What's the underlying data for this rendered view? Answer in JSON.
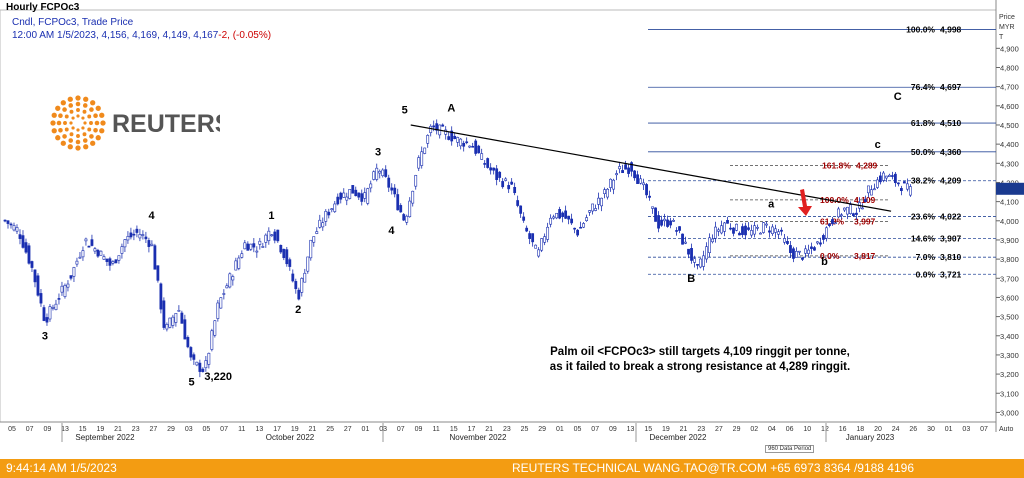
{
  "header": {
    "title": "Hourly FCPOc3",
    "legend_series": "Cndl, FCPOc3, Trade Price",
    "legend_ohlc": "12:00 AM 1/5/2023, 4,156, 4,169, 4,149, 4,167",
    "legend_change": "-2, (-0.05%)"
  },
  "logo": {
    "text": "REUTERS"
  },
  "price_axis": {
    "label_line1": "Price",
    "label_line2": "MYR",
    "label_line3": "T",
    "auto_label": "Auto"
  },
  "bottom_tag": "960 Data Period",
  "annotation": {
    "line1": "Palm oil <FCPOc3> still targets 4,109 ringgit per tonne,",
    "line2": "as it failed to break a strong resistance at 4,289 ringgit."
  },
  "footer": {
    "time": "9:44:14 AM 1/5/2023",
    "credit": "REUTERS TECHNICAL  WANG.TAO@TR.COM  +65 6973 8364 /9188 4196"
  },
  "chart_data": {
    "type": "candlestick",
    "title": "Hourly FCPOc3",
    "y_axis": {
      "unit": "MYR/T",
      "ylim": [
        2950,
        5100
      ],
      "ticks": [
        3000,
        3100,
        3200,
        3300,
        3400,
        3500,
        3600,
        3700,
        3800,
        3900,
        4000,
        4100,
        4200,
        4300,
        4400,
        4500,
        4600,
        4700,
        4800,
        4900
      ],
      "tick_labels": [
        "3,000",
        "3,100",
        "3,200",
        "3,300",
        "3,400",
        "3,500",
        "3,600",
        "3,700",
        "3,800",
        "3,900",
        "4,000",
        "4,100",
        "4,200",
        "4,300",
        "4,400",
        "4,500",
        "4,600",
        "4,700",
        "4,800",
        "4,900"
      ],
      "current_price": 4167
    },
    "x_axis": {
      "day_labels": [
        "05",
        "07",
        "09",
        "13",
        "15",
        "19",
        "21",
        "23",
        "27",
        "29",
        "03",
        "05",
        "07",
        "11",
        "13",
        "17",
        "19",
        "21",
        "25",
        "27",
        "01",
        "03",
        "07",
        "09",
        "11",
        "15",
        "17",
        "21",
        "23",
        "25",
        "29",
        "01",
        "05",
        "07",
        "09",
        "13",
        "15",
        "19",
        "21",
        "23",
        "27",
        "29",
        "02",
        "04",
        "06",
        "10",
        "12",
        "16",
        "18",
        "20",
        "24",
        "26",
        "30",
        "01",
        "03",
        "07"
      ],
      "month_labels": [
        "September 2022",
        "October 2022",
        "November 2022",
        "December 2022",
        "January 2023"
      ]
    },
    "price_path": [
      [
        0,
        4000
      ],
      [
        2,
        3950
      ],
      [
        4,
        3760
      ],
      [
        6,
        3480
      ],
      [
        8,
        3600
      ],
      [
        10,
        3720
      ],
      [
        12,
        3900
      ],
      [
        14,
        3840
      ],
      [
        16,
        3760
      ],
      [
        18,
        3900
      ],
      [
        20,
        3940
      ],
      [
        22,
        3880
      ],
      [
        24,
        3420
      ],
      [
        26,
        3550
      ],
      [
        28,
        3260
      ],
      [
        30,
        3220
      ],
      [
        32,
        3560
      ],
      [
        34,
        3720
      ],
      [
        36,
        3880
      ],
      [
        38,
        3860
      ],
      [
        40,
        3960
      ],
      [
        42,
        3820
      ],
      [
        44,
        3600
      ],
      [
        46,
        3900
      ],
      [
        48,
        4020
      ],
      [
        50,
        4120
      ],
      [
        52,
        4160
      ],
      [
        54,
        4120
      ],
      [
        56,
        4280
      ],
      [
        58,
        4160
      ],
      [
        60,
        4000
      ],
      [
        62,
        4300
      ],
      [
        64,
        4490
      ],
      [
        66,
        4460
      ],
      [
        68,
        4420
      ],
      [
        70,
        4400
      ],
      [
        72,
        4300
      ],
      [
        74,
        4220
      ],
      [
        76,
        4180
      ],
      [
        78,
        3960
      ],
      [
        80,
        3820
      ],
      [
        82,
        4040
      ],
      [
        84,
        4020
      ],
      [
        86,
        3940
      ],
      [
        88,
        4060
      ],
      [
        90,
        4140
      ],
      [
        92,
        4260
      ],
      [
        94,
        4280
      ],
      [
        96,
        4160
      ],
      [
        98,
        3980
      ],
      [
        100,
        4000
      ],
      [
        102,
        3880
      ],
      [
        104,
        3740
      ],
      [
        106,
        3920
      ],
      [
        108,
        3990
      ],
      [
        110,
        3950
      ],
      [
        112,
        3940
      ],
      [
        114,
        3970
      ],
      [
        116,
        3950
      ],
      [
        118,
        3830
      ],
      [
        120,
        3820
      ],
      [
        122,
        3880
      ],
      [
        124,
        4000
      ],
      [
        126,
        4060
      ],
      [
        128,
        4050
      ],
      [
        130,
        4180
      ],
      [
        132,
        4240
      ],
      [
        134,
        4200
      ],
      [
        136,
        4150
      ]
    ],
    "trendline": [
      [
        60,
        4500
      ],
      [
        130,
        4050
      ]
    ],
    "fib_right": [
      {
        "label": "100.0%",
        "value": "4,998",
        "y": 4998
      },
      {
        "label": "76.4%",
        "value": "4,697",
        "y": 4697
      },
      {
        "label": "61.8%",
        "value": "4,510",
        "y": 4510
      },
      {
        "label": "50.0%",
        "value": "4,360",
        "y": 4360
      },
      {
        "label": "38.2%",
        "value": "4,209",
        "y": 4209
      },
      {
        "label": "23.6%",
        "value": "4,022",
        "y": 4022
      },
      {
        "label": "14.6%",
        "value": "3,907",
        "y": 3907
      },
      {
        "label": "7.0%",
        "value": "3,810",
        "y": 3810
      },
      {
        "label": "0.0%",
        "value": "3,721",
        "y": 3721
      }
    ],
    "fib_red": [
      {
        "label": "161.8%",
        "value": "4,289",
        "y": 4289
      },
      {
        "label": "100.0%",
        "value": "4,109",
        "y": 4109
      },
      {
        "label": "61.8%",
        "value": "3,997",
        "y": 3997
      },
      {
        "label": "0.0%",
        "value": "3,817",
        "y": 3817
      }
    ],
    "wave_labels": [
      {
        "text": "3",
        "x": 6,
        "y": 3380
      },
      {
        "text": "4",
        "x": 22,
        "y": 4010
      },
      {
        "text": "5",
        "x": 28,
        "y": 3140
      },
      {
        "text": "3,220",
        "x": 32,
        "y": 3170
      },
      {
        "text": "1",
        "x": 40,
        "y": 4010
      },
      {
        "text": "2",
        "x": 44,
        "y": 3520
      },
      {
        "text": "3",
        "x": 56,
        "y": 4340
      },
      {
        "text": "4",
        "x": 58,
        "y": 3930
      },
      {
        "text": "5",
        "x": 60,
        "y": 4560
      },
      {
        "text": "A",
        "x": 67,
        "y": 4570
      },
      {
        "text": "B",
        "x": 103,
        "y": 3680
      },
      {
        "text": "a",
        "x": 115,
        "y": 4070
      },
      {
        "text": "b",
        "x": 123,
        "y": 3770
      },
      {
        "text": "c",
        "x": 131,
        "y": 4380
      },
      {
        "text": "C",
        "x": 134,
        "y": 4630
      }
    ]
  }
}
